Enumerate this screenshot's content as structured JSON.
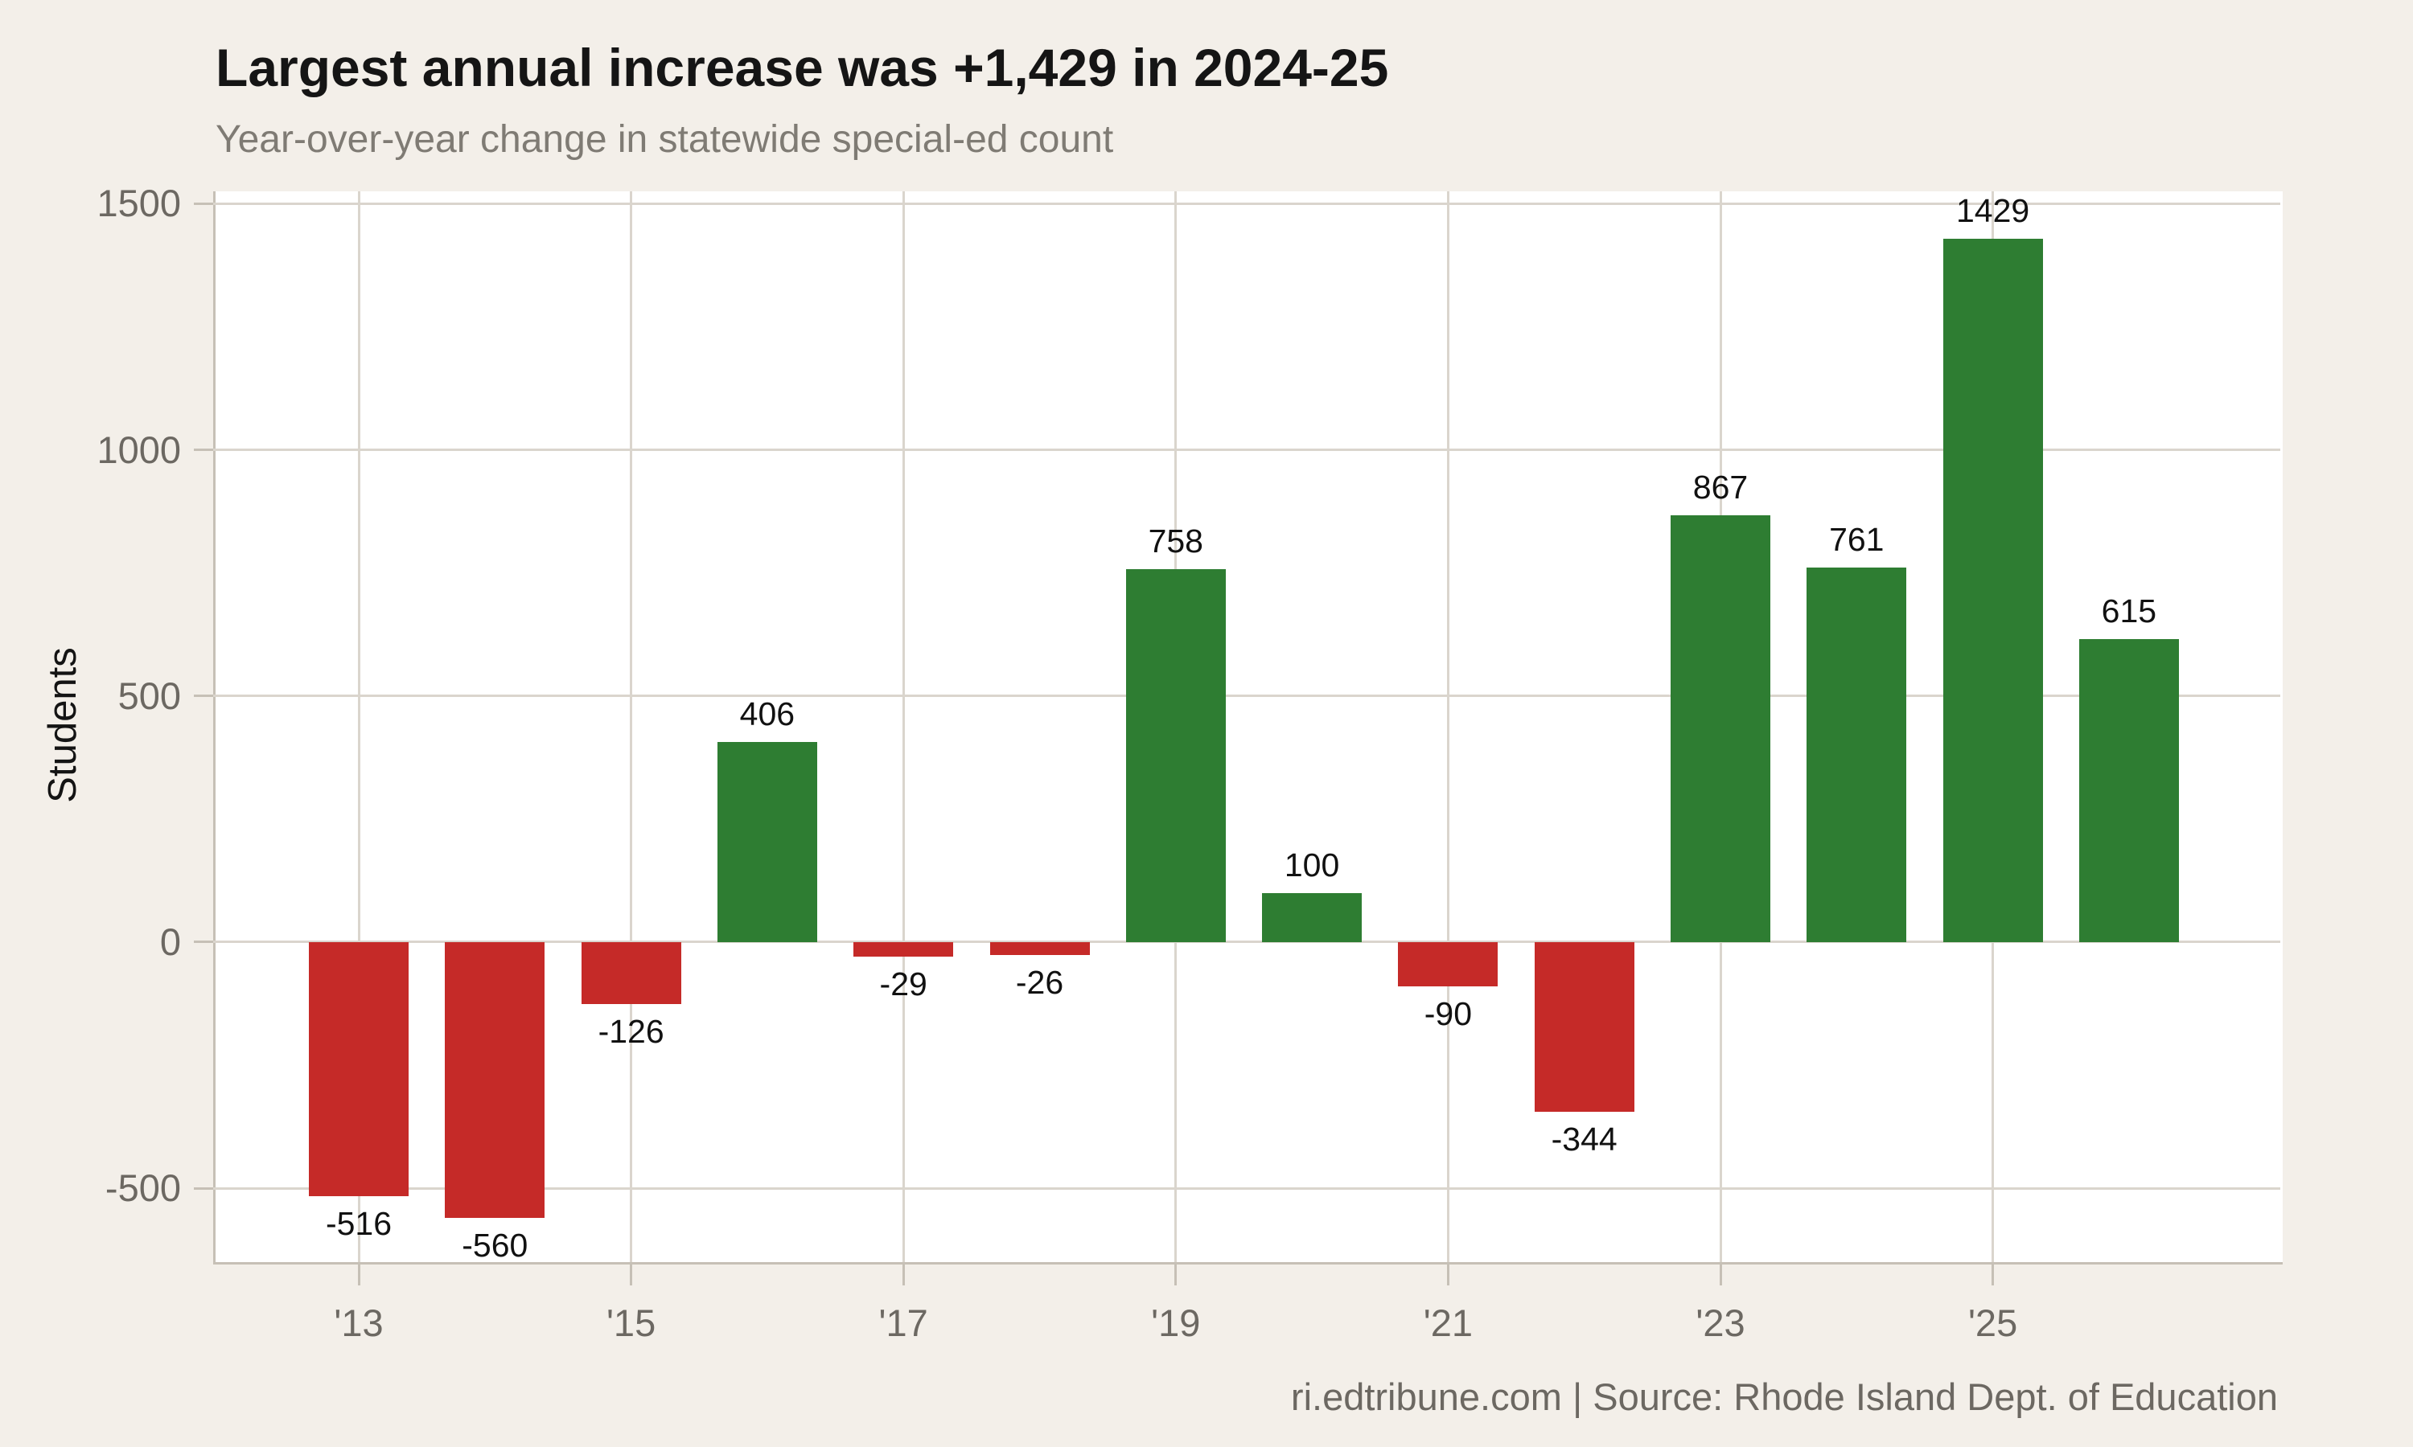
{
  "header": {
    "title": "Largest annual increase was +1,429 in 2024-25",
    "subtitle": "Year-over-year change in statewide special-ed count"
  },
  "footer": {
    "credit": "ri.edtribune.com | Source: Rhode Island Dept. of Education"
  },
  "chart_data": {
    "type": "bar",
    "title": "Largest annual increase was +1,429 in 2024-25",
    "subtitle": "Year-over-year change in statewide special-ed count",
    "ylabel": "Students",
    "xlabel": "",
    "values": [
      -516,
      -560,
      -126,
      406,
      -29,
      -26,
      758,
      100,
      -90,
      -344,
      867,
      761,
      1429,
      615
    ],
    "bar_labels": [
      "-516",
      "-560",
      "-126",
      "406",
      "-29",
      "-26",
      "758",
      "100",
      "-90",
      "-344",
      "867",
      "761",
      "1429",
      "615"
    ],
    "num_bars": 14,
    "x_ticks": [
      {
        "label": "'13",
        "bar_index": 0
      },
      {
        "label": "'15",
        "bar_index": 2
      },
      {
        "label": "'17",
        "bar_index": 4
      },
      {
        "label": "'19",
        "bar_index": 6
      },
      {
        "label": "'21",
        "bar_index": 8
      },
      {
        "label": "'23",
        "bar_index": 10
      },
      {
        "label": "'25",
        "bar_index": 12
      }
    ],
    "y_ticks": [
      1500,
      1000,
      500,
      0,
      -500
    ],
    "ylim": [
      -650,
      1525
    ],
    "grid": true,
    "legend": "none",
    "colors": {
      "positive_bar": "#2e7d32",
      "negative_bar": "#c52a28",
      "background": "#f3efe9",
      "panel_background": "#ffffff",
      "gridline": "#dad5cd",
      "axis_line": "#c6c0b6",
      "tick_text": "#6c6862",
      "title_text": "#151515",
      "subtitle_text": "#7f7b74",
      "bar_label_text": "#111111"
    }
  }
}
